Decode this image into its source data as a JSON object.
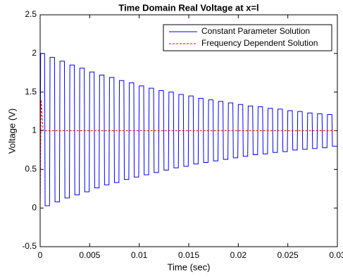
{
  "chart_data": {
    "type": "line",
    "title": "Time Domain Real Voltage at x=l",
    "xlabel": "Time (sec)",
    "ylabel": "Voltage (V)",
    "xlim": [
      0,
      0.03
    ],
    "ylim": [
      -0.5,
      2.5
    ],
    "xticks": [
      0,
      0.005,
      0.01,
      0.015,
      0.02,
      0.025,
      0.03
    ],
    "yticks": [
      -0.5,
      0,
      0.5,
      1,
      1.5,
      2,
      2.5
    ],
    "grid": false,
    "legend": "northeast",
    "series": [
      {
        "name": "Constant Parameter Solution",
        "color": "#0000ff",
        "style": "solid",
        "x": [
          0,
          5e-05,
          0.00045,
          0.0005,
          0.00095,
          0.001,
          0.00145,
          0.0015,
          0.00195,
          0.002,
          0.00245,
          0.0025,
          0.00295,
          0.003,
          0.00345,
          0.0035,
          0.00395,
          0.004,
          0.00445,
          0.0045,
          0.00495,
          0.005,
          0.00545,
          0.0055,
          0.00595,
          0.006,
          0.00645,
          0.0065,
          0.00695,
          0.007,
          0.00745,
          0.0075,
          0.00795,
          0.008,
          0.00845,
          0.0085,
          0.00895,
          0.009,
          0.00945,
          0.0095,
          0.00995,
          0.01,
          0.01045,
          0.0105,
          0.01095,
          0.011,
          0.01145,
          0.0115,
          0.01195,
          0.012,
          0.01245,
          0.0125,
          0.01295,
          0.013,
          0.01345,
          0.0135,
          0.01395,
          0.014,
          0.01445,
          0.0145,
          0.01495,
          0.015,
          0.01545,
          0.0155,
          0.01595,
          0.016,
          0.01645,
          0.0165,
          0.01695,
          0.017,
          0.01745,
          0.0175,
          0.01795,
          0.018,
          0.01845,
          0.0185,
          0.01895,
          0.019,
          0.01945,
          0.0195,
          0.01995,
          0.02,
          0.02045,
          0.0205,
          0.02095,
          0.021,
          0.02145,
          0.0215,
          0.02195,
          0.022,
          0.02245,
          0.0225,
          0.02295,
          0.023,
          0.02345,
          0.0235,
          0.02395,
          0.024,
          0.02445,
          0.0245,
          0.02495,
          0.025,
          0.02545,
          0.0255,
          0.02595,
          0.026,
          0.02645,
          0.0265,
          0.02695,
          0.027,
          0.02745,
          0.0275,
          0.02795,
          0.028,
          0.02845,
          0.0285,
          0.02895,
          0.029,
          0.02945,
          0.0295,
          0.02995
        ],
        "values": [
          0,
          2.0,
          2.0,
          0.03,
          0.03,
          1.95,
          1.95,
          0.08,
          0.08,
          1.9,
          1.9,
          0.13,
          0.13,
          1.85,
          1.85,
          0.17,
          0.17,
          1.81,
          1.81,
          0.21,
          0.21,
          1.76,
          1.76,
          0.26,
          0.26,
          1.72,
          1.72,
          0.3,
          0.3,
          1.69,
          1.69,
          0.33,
          0.33,
          1.65,
          1.65,
          0.37,
          0.37,
          1.62,
          1.62,
          0.4,
          0.4,
          1.58,
          1.58,
          0.43,
          0.43,
          1.55,
          1.55,
          0.46,
          0.46,
          1.52,
          1.52,
          0.49,
          0.49,
          1.5,
          1.5,
          0.52,
          0.52,
          1.47,
          1.47,
          0.54,
          0.54,
          1.45,
          1.45,
          0.57,
          0.57,
          1.42,
          1.42,
          0.59,
          0.59,
          1.4,
          1.4,
          0.61,
          0.61,
          1.38,
          1.38,
          0.63,
          0.63,
          1.36,
          1.36,
          0.65,
          0.65,
          1.34,
          1.34,
          0.67,
          0.67,
          1.32,
          1.32,
          0.69,
          0.69,
          1.31,
          1.31,
          0.7,
          0.7,
          1.29,
          1.29,
          0.72,
          0.72,
          1.28,
          1.28,
          0.73,
          0.73,
          1.26,
          1.26,
          0.75,
          0.75,
          1.25,
          1.25,
          0.76,
          0.76,
          1.23,
          1.23,
          0.77,
          0.77,
          1.22,
          1.22,
          0.78,
          0.78,
          1.21,
          1.21,
          0.8,
          0.8
        ]
      },
      {
        "name": "Frequency Dependent Solution",
        "color": "#ff0000",
        "style": "dashed",
        "x": [
          0,
          0.0001,
          0.0003,
          0.03
        ],
        "values": [
          0,
          1.4,
          1,
          1
        ]
      }
    ]
  }
}
